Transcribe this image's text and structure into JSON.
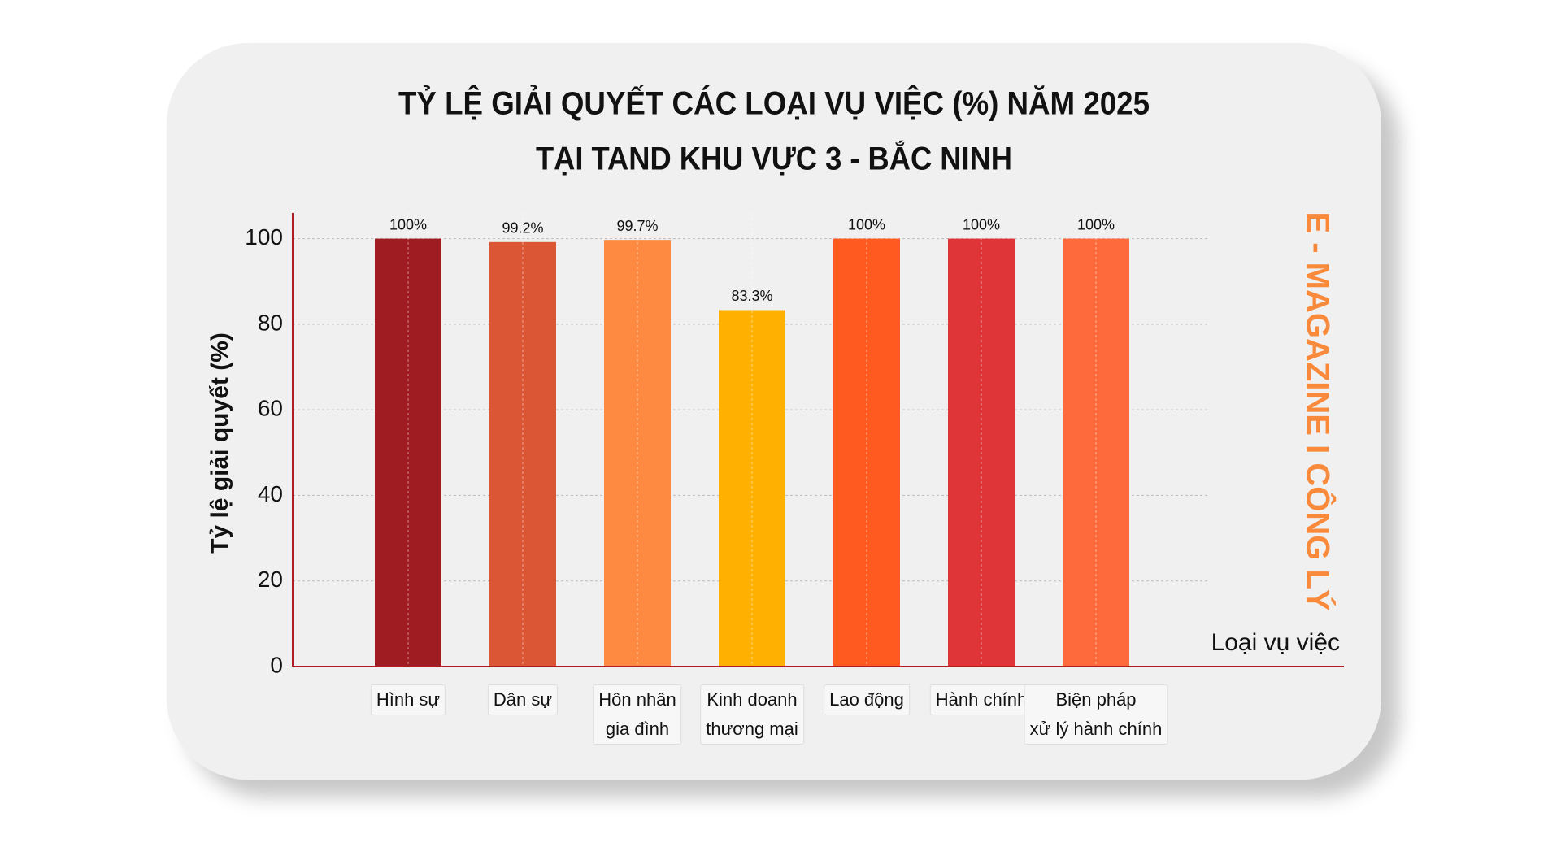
{
  "chart_data": {
    "type": "bar",
    "title": [
      "TỶ LỆ GIẢI QUYẾT CÁC LOẠI VỤ VIỆC (%) NĂM 2025",
      "TẠI TAND KHU VỰC 3 - BẮC NINH"
    ],
    "y_label": "Tỷ lệ giải quyết (%)",
    "x_label": "Loại vụ việc",
    "watermark": "E - MAGAZINE I CÔNG LÝ",
    "categories": [
      "Hình sự",
      "Dân sự",
      "Hôn nhân\ngia đình",
      "Kinh doanh\nthương mại",
      "Lao động",
      "Hành chính",
      "Biện pháp\nxử lý hành chính"
    ],
    "values": [
      100,
      99.2,
      99.7,
      83.3,
      100,
      100,
      100
    ],
    "value_labels": [
      "100%",
      "99.2%",
      "99.7%",
      "83.3%",
      "100%",
      "100%",
      "100%"
    ],
    "colors": [
      "#9e1c22",
      "#db5635",
      "#fd8a40",
      "#ffb000",
      "#ff5a1f",
      "#df3538",
      "#ff6a3d"
    ],
    "ylim": [
      0,
      106
    ],
    "yticks": [
      0,
      20,
      40,
      60,
      80,
      100
    ],
    "grid": true
  }
}
